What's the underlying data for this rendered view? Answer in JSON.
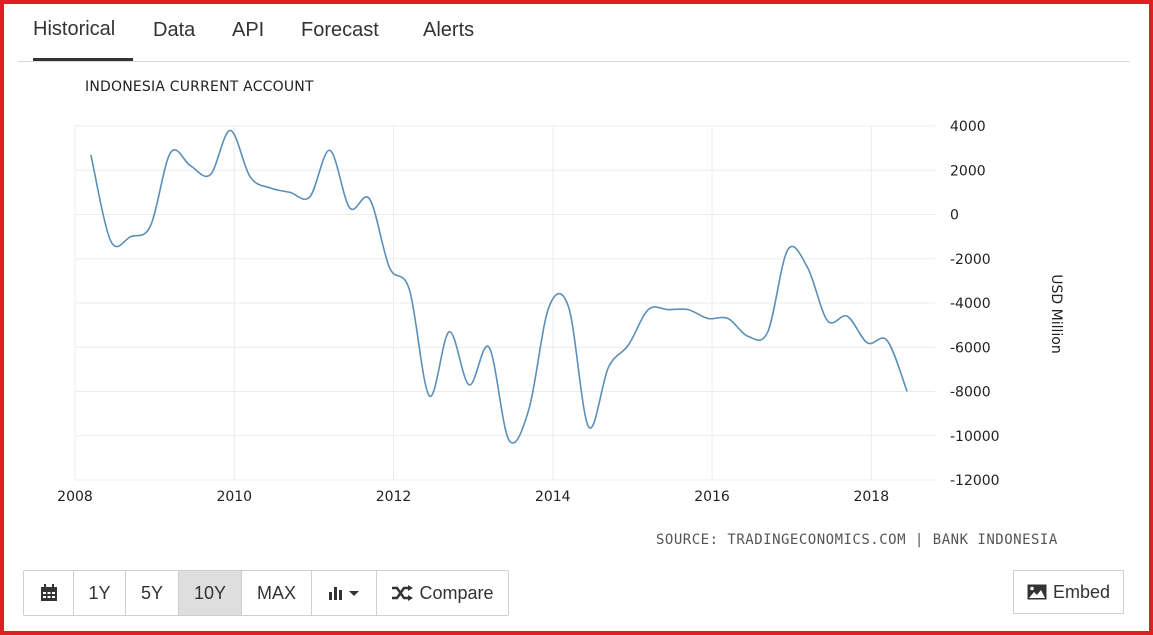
{
  "tabs": [
    {
      "label": "Historical",
      "active": true
    },
    {
      "label": "Data"
    },
    {
      "label": "API"
    },
    {
      "label": "Forecast"
    },
    {
      "label": "Alerts"
    }
  ],
  "source": "SOURCE: TRADINGECONOMICS.COM | BANK INDONESIA",
  "toolbar": {
    "calendar_icon": "calendar-icon",
    "ranges": [
      "1Y",
      "5Y",
      "10Y",
      "MAX"
    ],
    "active_range": "10Y",
    "chart_type_icon": "bar-chart-icon",
    "compare_label": "Compare",
    "compare_icon": "shuffle-icon"
  },
  "embed": {
    "label": "Embed",
    "icon": "image-icon"
  },
  "colors": {
    "line": "#5b8fb9",
    "accent_frame": "#e02020"
  },
  "chart_data": {
    "type": "line",
    "title": "INDONESIA CURRENT ACCOUNT",
    "ylabel": "USD Million",
    "xlabel": "",
    "xlim": [
      2008,
      2018.8
    ],
    "ylim": [
      -12000,
      4000
    ],
    "x_ticks": [
      "2008",
      "2010",
      "2012",
      "2014",
      "2016",
      "2018"
    ],
    "y_ticks": [
      "4000",
      "2000",
      "0",
      "-2000",
      "-4000",
      "-6000",
      "-8000",
      "-10000",
      "-12000"
    ],
    "y_axis_position": "right",
    "grid": true,
    "series": [
      {
        "x": [
          2008.2,
          2008.45,
          2008.7,
          2008.95,
          2009.2,
          2009.45,
          2009.7,
          2009.95,
          2010.2,
          2010.45,
          2010.7,
          2010.95,
          2011.2,
          2011.45,
          2011.7,
          2011.95,
          2012.2,
          2012.45,
          2012.7,
          2012.95,
          2013.2,
          2013.45,
          2013.7,
          2013.95,
          2014.2,
          2014.45,
          2014.7,
          2014.95,
          2015.2,
          2015.45,
          2015.7,
          2015.95,
          2016.2,
          2016.45,
          2016.7,
          2016.95,
          2017.2,
          2017.45,
          2017.7,
          2017.95,
          2018.2,
          2018.45
        ],
        "y": [
          2700,
          -1200,
          -1000,
          -500,
          2800,
          2200,
          1800,
          3800,
          1700,
          1200,
          1000,
          800,
          2900,
          300,
          700,
          -2400,
          -3400,
          -8200,
          -5300,
          -7700,
          -6000,
          -10200,
          -8800,
          -4200,
          -4200,
          -9600,
          -6900,
          -5900,
          -4300,
          -4300,
          -4300,
          -4700,
          -4700,
          -5500,
          -5300,
          -1600,
          -2400,
          -4800,
          -4600,
          -5800,
          -5700,
          -8000
        ]
      }
    ]
  }
}
